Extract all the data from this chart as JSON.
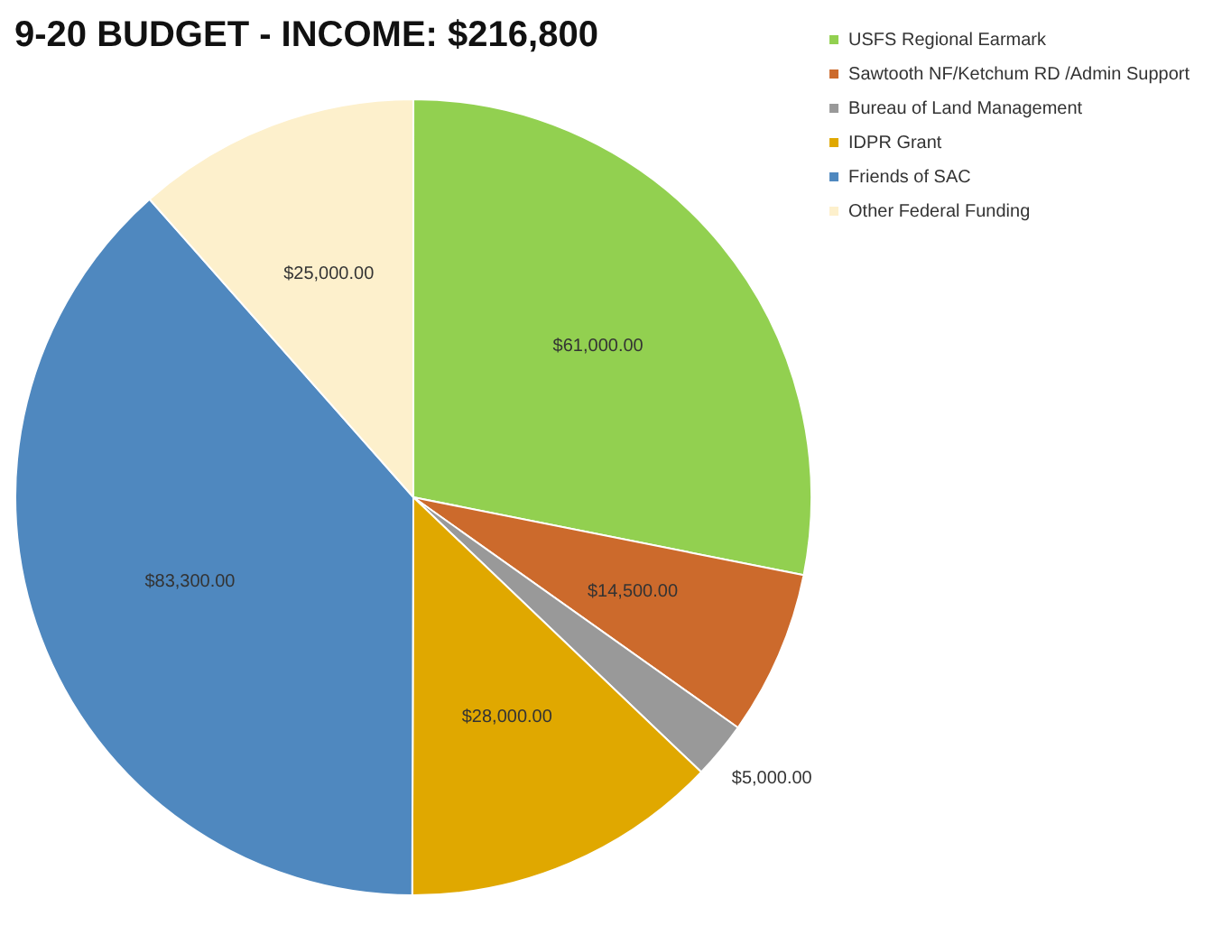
{
  "chart_data": {
    "type": "pie",
    "title": "9-20 BUDGET - INCOME: $216,800",
    "categories": [
      "USFS Regional Earmark",
      "Sawtooth NF/Ketchum RD /Admin Support",
      "Bureau of Land Management",
      "IDPR Grant",
      "Friends of SAC",
      "Other Federal Funding"
    ],
    "values": [
      61000,
      14500,
      5000,
      28000,
      83300,
      25000
    ],
    "colors": [
      "#92d050",
      "#cc6a2c",
      "#999999",
      "#e0a800",
      "#4f88bf",
      "#fdf0cc"
    ],
    "value_labels": [
      "$61,000.00",
      "$14,500.00",
      "$5,000.00",
      "$28,000.00",
      "$83,300.00",
      "$25,000.00"
    ],
    "legend": "top right"
  }
}
